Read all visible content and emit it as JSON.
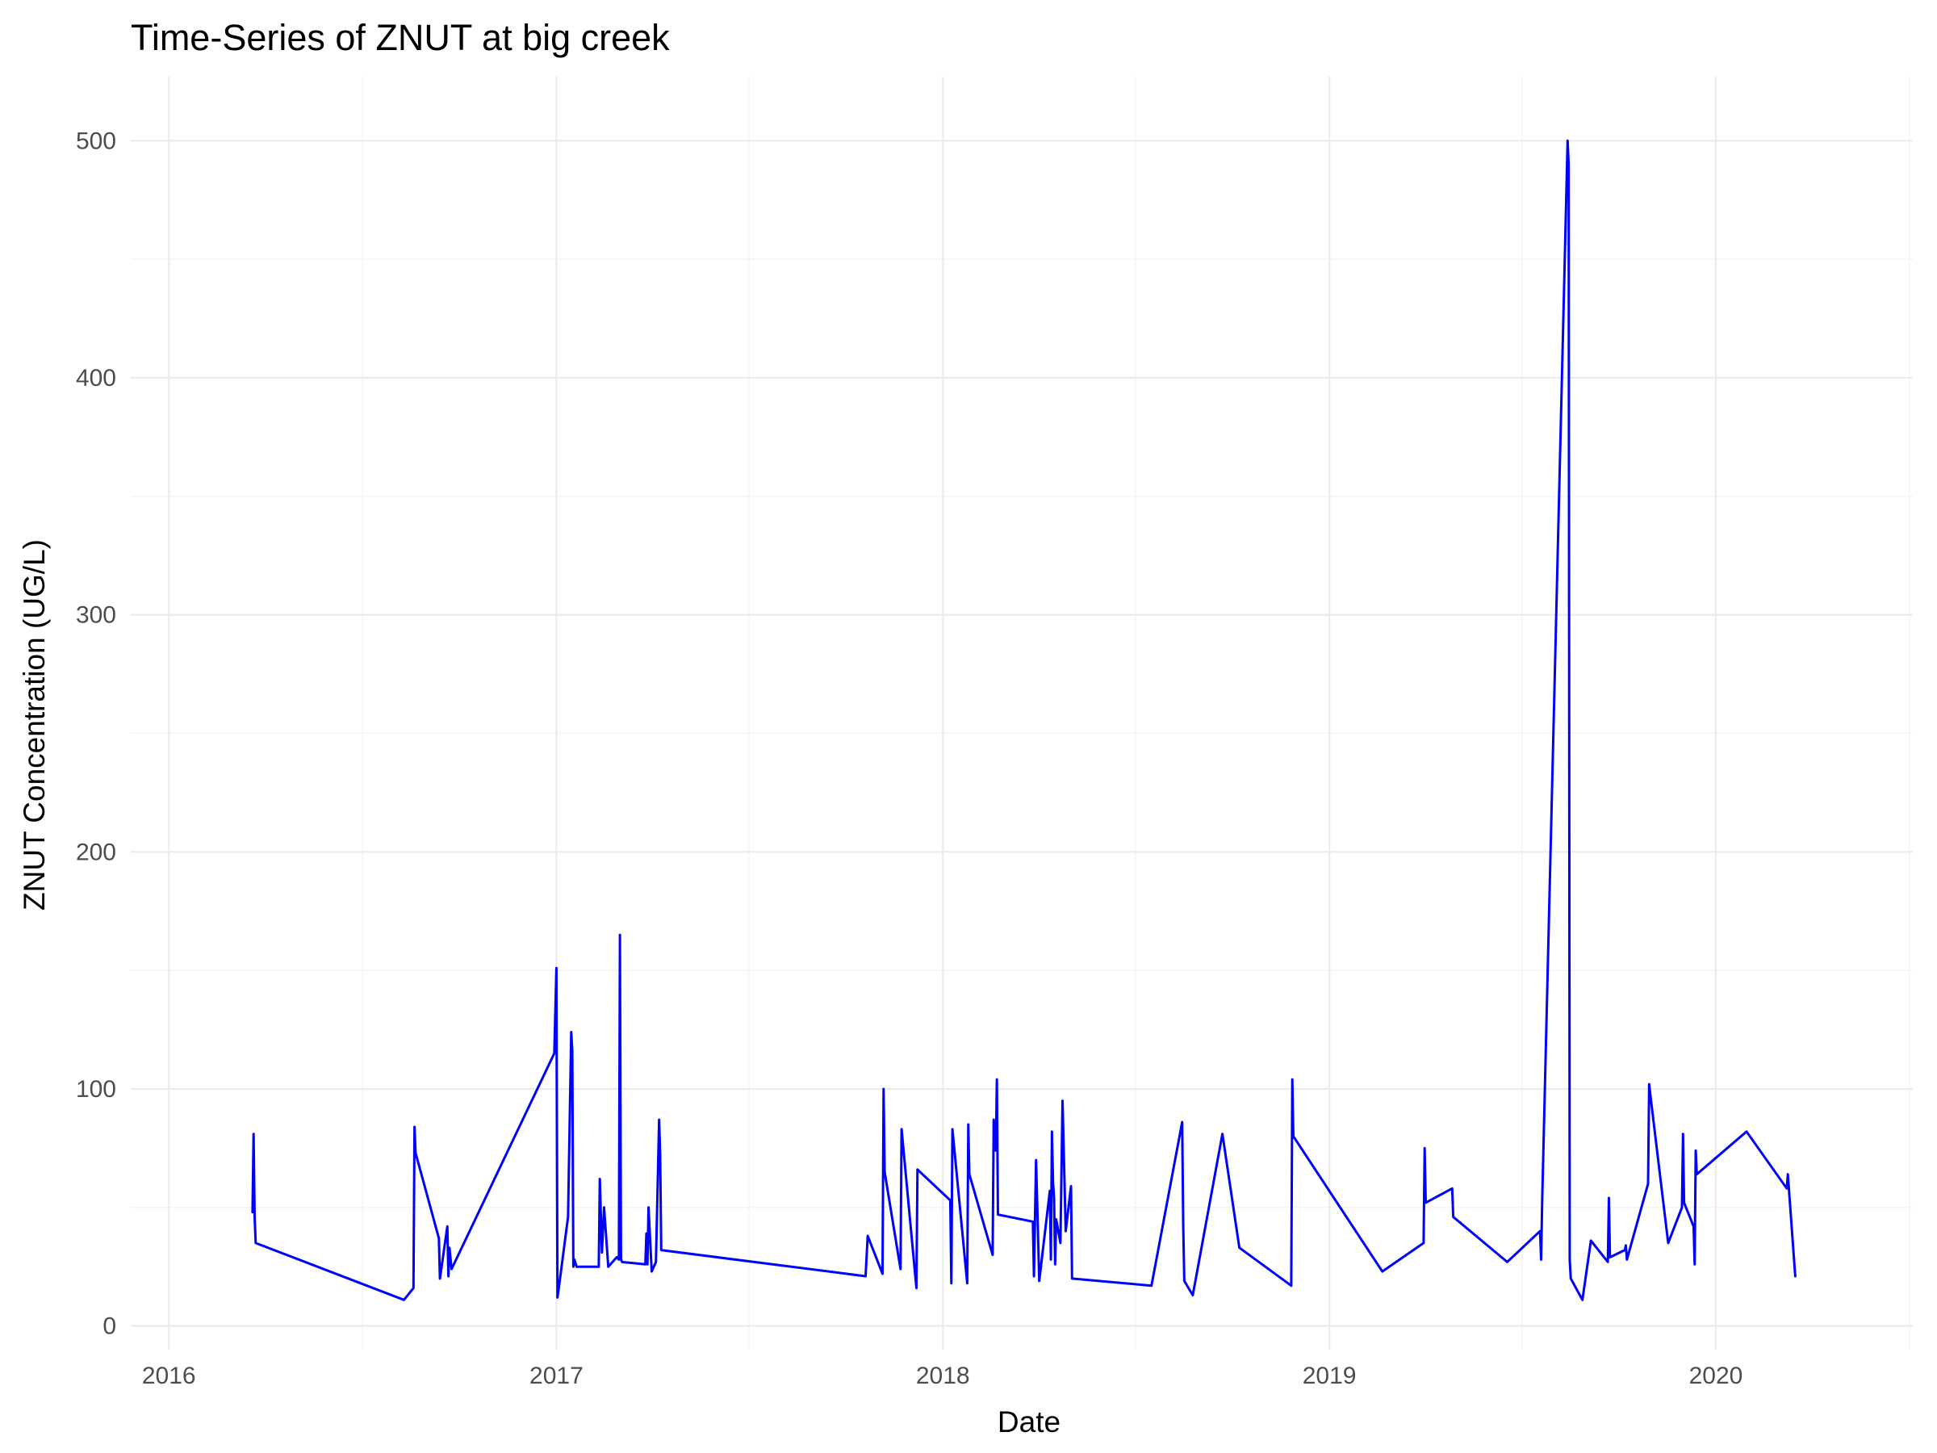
{
  "chart_data": {
    "type": "line",
    "title": "Time-Series of ZNUT at big creek",
    "xlabel": "Date",
    "ylabel": "ZNUT Concentration (UG/L)",
    "xlim": [
      "2015-11-26",
      "2020-07-05"
    ],
    "ylim": [
      -10,
      527
    ],
    "x_ticks": [
      "2016",
      "2017",
      "2018",
      "2019",
      "2020"
    ],
    "y_ticks": [
      0,
      100,
      200,
      300,
      400,
      500
    ],
    "grid": true,
    "legend": "none",
    "line_color": "#0000ff",
    "series": [
      {
        "x": [
          "2016-03-20",
          "2016-03-21",
          "2016-03-22",
          "2016-03-23",
          "2016-08-10",
          "2016-08-19",
          "2016-08-20",
          "2016-08-21",
          "2016-09-12",
          "2016-09-13",
          "2016-09-20",
          "2016-09-21",
          "2016-09-22",
          "2016-09-24",
          "2016-12-30",
          "2017-01-01",
          "2017-01-02",
          "2017-01-03",
          "2017-01-05",
          "2017-01-12",
          "2017-01-15",
          "2017-01-16",
          "2017-01-17",
          "2017-01-18",
          "2017-01-20",
          "2017-02-10",
          "2017-02-11",
          "2017-02-13",
          "2017-02-15",
          "2017-02-19",
          "2017-02-27",
          "2017-03-01",
          "2017-03-02",
          "2017-03-03",
          "2017-03-04",
          "2017-03-26",
          "2017-03-27",
          "2017-03-28",
          "2017-03-29",
          "2017-04-01",
          "2017-04-05",
          "2017-04-08",
          "2017-04-09",
          "2017-04-10",
          "2017-10-20",
          "2017-10-22",
          "2017-11-05",
          "2017-11-06",
          "2017-11-07",
          "2017-11-22",
          "2017-11-23",
          "2017-12-07",
          "2017-12-08",
          "2018-01-08",
          "2018-01-09",
          "2018-01-10",
          "2018-01-24",
          "2018-01-25",
          "2018-01-26",
          "2018-02-17",
          "2018-02-18",
          "2018-02-20",
          "2018-02-21",
          "2018-02-22",
          "2018-03-27",
          "2018-03-28",
          "2018-03-30",
          "2018-04-02",
          "2018-04-12",
          "2018-04-13",
          "2018-04-14",
          "2018-04-15",
          "2018-04-16",
          "2018-04-17",
          "2018-04-18",
          "2018-04-22",
          "2018-04-24",
          "2018-04-27",
          "2018-05-02",
          "2018-05-03",
          "2018-07-17",
          "2018-08-15",
          "2018-08-16",
          "2018-08-17",
          "2018-08-25",
          "2018-09-22",
          "2018-09-23",
          "2018-10-08",
          "2018-11-26",
          "2018-11-27",
          "2018-11-28",
          "2019-02-20",
          "2019-03-31",
          "2019-04-01",
          "2019-04-02",
          "2019-04-27",
          "2019-04-28",
          "2019-06-18",
          "2019-07-19",
          "2019-07-20",
          "2019-07-21",
          "2019-08-14",
          "2019-08-15",
          "2019-08-16",
          "2019-08-17",
          "2019-08-28",
          "2019-09-05",
          "2019-09-21",
          "2019-09-22",
          "2019-09-23",
          "2019-10-07",
          "2019-10-08",
          "2019-10-09",
          "2019-10-29",
          "2019-10-30",
          "2019-10-31",
          "2019-11-17",
          "2019-11-30",
          "2019-12-01",
          "2019-12-02",
          "2019-12-11",
          "2019-12-12",
          "2019-12-13",
          "2019-12-14",
          "2020-01-30",
          "2020-03-08",
          "2020-03-09",
          "2020-03-16"
        ],
        "y": [
          48,
          81,
          46,
          35,
          11,
          16,
          84,
          73,
          37,
          20,
          42,
          21,
          33,
          24,
          115,
          151,
          12,
          15,
          22,
          46,
          124,
          116,
          25,
          28,
          25,
          25,
          62,
          31,
          50,
          25,
          29,
          28,
          165,
          28,
          27,
          26,
          39,
          26,
          50,
          23,
          27,
          87,
          72,
          32,
          21,
          38,
          22,
          100,
          65,
          24,
          83,
          16,
          66,
          53,
          18,
          83,
          18,
          85,
          64,
          30,
          87,
          74,
          104,
          47,
          44,
          21,
          70,
          19,
          57,
          28,
          82,
          61,
          54,
          26,
          45,
          35,
          95,
          40,
          59,
          20,
          17,
          86,
          42,
          19,
          13,
          81,
          78,
          33,
          17,
          104,
          80,
          23,
          35,
          75,
          52,
          58,
          46,
          27,
          40,
          28,
          53,
          500,
          490,
          28,
          20,
          11,
          36,
          27,
          54,
          29,
          32,
          34,
          28,
          60,
          102,
          98,
          35,
          50,
          81,
          52,
          42,
          26,
          74,
          64,
          82,
          58,
          64,
          21
        ]
      }
    ]
  }
}
